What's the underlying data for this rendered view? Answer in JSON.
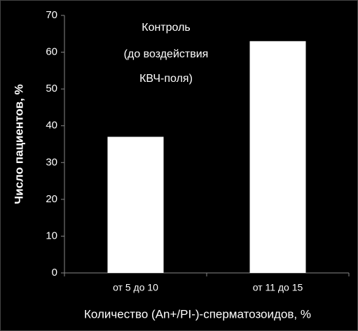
{
  "chart_data": {
    "type": "bar",
    "title": [
      "Контроль",
      "(до воздействия",
      "КВЧ-поля)"
    ],
    "x_label": "Количество (An+/PI-)-сперматозоидов, %",
    "y_label": "Число пациентов, %",
    "categories": [
      "от 5 до 10",
      "от 11 до 15"
    ],
    "values": [
      37,
      63
    ],
    "color": "#ffffff",
    "ylim": [
      0,
      70
    ],
    "yticks": [
      0,
      10,
      20,
      30,
      40,
      50,
      60,
      70
    ],
    "grid": false
  }
}
